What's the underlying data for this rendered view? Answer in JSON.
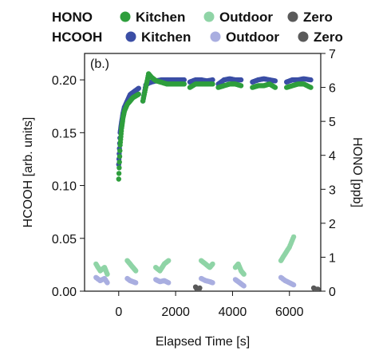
{
  "chart_data": {
    "type": "scatter",
    "panel_label": "(b.)",
    "legend": {
      "rows": [
        {
          "label": "HONO",
          "entries": [
            {
              "name": "Kitchen",
              "color": "#2e9e3c"
            },
            {
              "name": "Outdoor",
              "color": "#8fd4a6"
            },
            {
              "name": "Zero",
              "color": "#5a5a5a"
            }
          ]
        },
        {
          "label": "HCOOH",
          "entries": [
            {
              "name": "Kitchen",
              "color": "#3b4ea5"
            },
            {
              "name": "Outdoor",
              "color": "#a9aee0"
            },
            {
              "name": "Zero",
              "color": "#5a5a5a"
            }
          ]
        }
      ]
    },
    "xlabel": "Elapsed Time  [s]",
    "ylabel_left": "HCOOH  [arb. units]",
    "ylabel_right": "HONO  [ppb]",
    "xlim": [
      -1200,
      7100
    ],
    "ylim_left": [
      0.0,
      0.225
    ],
    "ylim_right": [
      0,
      7
    ],
    "xticks": [
      0,
      2000,
      4000,
      6000
    ],
    "yticks_left": [
      "0.00",
      "0.05",
      "0.10",
      "0.15",
      "0.20"
    ],
    "yticks_right": [
      0,
      1,
      2,
      3,
      4,
      5,
      6,
      7
    ],
    "grid": false,
    "series": [
      {
        "name": "HCOOH Kitchen",
        "axis": "left",
        "color": "#3b4ea5",
        "segments": [
          {
            "x": [
              0,
              50,
              100,
              150,
              200,
              300,
              400,
              500,
              600,
              700
            ],
            "y": [
              0.12,
              0.15,
              0.16,
              0.168,
              0.174,
              0.18,
              0.186,
              0.188,
              0.19,
              0.192
            ]
          },
          {
            "x": [
              850,
              950,
              1050,
              1150,
              1300,
              1500,
              1700,
              1900,
              2100,
              2300
            ],
            "y": [
              0.18,
              0.195,
              0.197,
              0.198,
              0.199,
              0.2,
              0.2,
              0.2,
              0.2,
              0.2
            ]
          },
          {
            "x": [
              2500,
              2700,
              2900,
              3100,
              3300
            ],
            "y": [
              0.198,
              0.2,
              0.2,
              0.199,
              0.2
            ]
          },
          {
            "x": [
              3500,
              3700,
              3900,
              4100,
              4300
            ],
            "y": [
              0.196,
              0.2,
              0.201,
              0.2,
              0.2
            ]
          },
          {
            "x": [
              4700,
              4900,
              5100,
              5300,
              5500
            ],
            "y": [
              0.198,
              0.2,
              0.201,
              0.2,
              0.199
            ]
          },
          {
            "x": [
              5900,
              6100,
              6300,
              6500,
              6750
            ],
            "y": [
              0.198,
              0.2,
              0.2,
              0.201,
              0.2
            ]
          }
        ]
      },
      {
        "name": "HONO Kitchen",
        "axis": "right",
        "color": "#2e9e3c",
        "segments": [
          {
            "x": [
              0,
              50,
              100,
              150,
              200,
              300,
              400,
              500,
              600,
              700
            ],
            "y": [
              3.3,
              4.3,
              4.8,
              5.1,
              5.3,
              5.5,
              5.6,
              5.7,
              5.75,
              5.8
            ]
          },
          {
            "x": [
              850,
              950,
              1050,
              1150,
              1300,
              1500,
              1700,
              1900,
              2100,
              2300
            ],
            "y": [
              5.6,
              6.0,
              6.4,
              6.3,
              6.2,
              6.15,
              6.1,
              6.1,
              6.1,
              6.1
            ]
          },
          {
            "x": [
              2500,
              2700,
              2900,
              3100,
              3300
            ],
            "y": [
              6.0,
              6.1,
              6.1,
              6.1,
              6.1
            ]
          },
          {
            "x": [
              3500,
              3700,
              3900,
              4100,
              4300
            ],
            "y": [
              6.0,
              6.05,
              6.1,
              6.1,
              6.05
            ]
          },
          {
            "x": [
              4700,
              4900,
              5100,
              5300,
              5500
            ],
            "y": [
              6.0,
              6.05,
              6.05,
              6.1,
              6.0
            ]
          },
          {
            "x": [
              5900,
              6100,
              6300,
              6500,
              6750
            ],
            "y": [
              6.0,
              6.05,
              6.1,
              6.1,
              6.0
            ]
          }
        ]
      },
      {
        "name": "HONO Outdoor",
        "axis": "right",
        "color": "#8fd4a6",
        "segments": [
          {
            "x": [
              -800,
              -650,
              -500,
              -400
            ],
            "y": [
              0.8,
              0.6,
              0.7,
              0.5
            ]
          },
          {
            "x": [
              300,
              400,
              500,
              600
            ],
            "y": [
              0.9,
              0.8,
              0.7,
              0.6
            ]
          },
          {
            "x": [
              1300,
              1450,
              1600,
              1750
            ],
            "y": [
              0.7,
              0.6,
              0.8,
              0.9
            ]
          },
          {
            "x": [
              2900,
              3050,
              3200,
              3300
            ],
            "y": [
              0.9,
              0.8,
              0.7,
              0.8
            ]
          },
          {
            "x": [
              4100,
              4200,
              4300,
              4400
            ],
            "y": [
              0.7,
              0.8,
              0.6,
              0.5
            ]
          },
          {
            "x": [
              5700,
              5850,
              6000,
              6150
            ],
            "y": [
              0.9,
              1.1,
              1.3,
              1.6
            ]
          }
        ]
      },
      {
        "name": "HCOOH Outdoor",
        "axis": "left",
        "color": "#a9aee0",
        "segments": [
          {
            "x": [
              -800,
              -650,
              -500,
              -400
            ],
            "y": [
              0.013,
              0.01,
              0.012,
              0.008
            ]
          },
          {
            "x": [
              300,
              400,
              500,
              600
            ],
            "y": [
              0.012,
              0.01,
              0.009,
              0.008
            ]
          },
          {
            "x": [
              1300,
              1450,
              1600,
              1750
            ],
            "y": [
              0.011,
              0.009,
              0.01,
              0.008
            ]
          },
          {
            "x": [
              2900,
              3050,
              3200,
              3300
            ],
            "y": [
              0.012,
              0.01,
              0.009,
              0.008
            ]
          },
          {
            "x": [
              4100,
              4200,
              4300,
              4400
            ],
            "y": [
              0.011,
              0.009,
              0.007,
              0.005
            ]
          },
          {
            "x": [
              5700,
              5850,
              6000,
              6150
            ],
            "y": [
              0.013,
              0.01,
              0.008,
              0.006
            ]
          }
        ]
      },
      {
        "name": "Zero",
        "axis": "left",
        "color": "#5a5a5a",
        "segments": [
          {
            "x": [
              2700,
              2750,
              2800,
              2850
            ],
            "y": [
              0.004,
              0.002,
              0.001,
              0.003
            ]
          },
          {
            "x": [
              6850,
              6900,
              6950,
              7000
            ],
            "y": [
              0.003,
              0.002,
              0.001,
              0.002
            ]
          }
        ]
      }
    ]
  }
}
